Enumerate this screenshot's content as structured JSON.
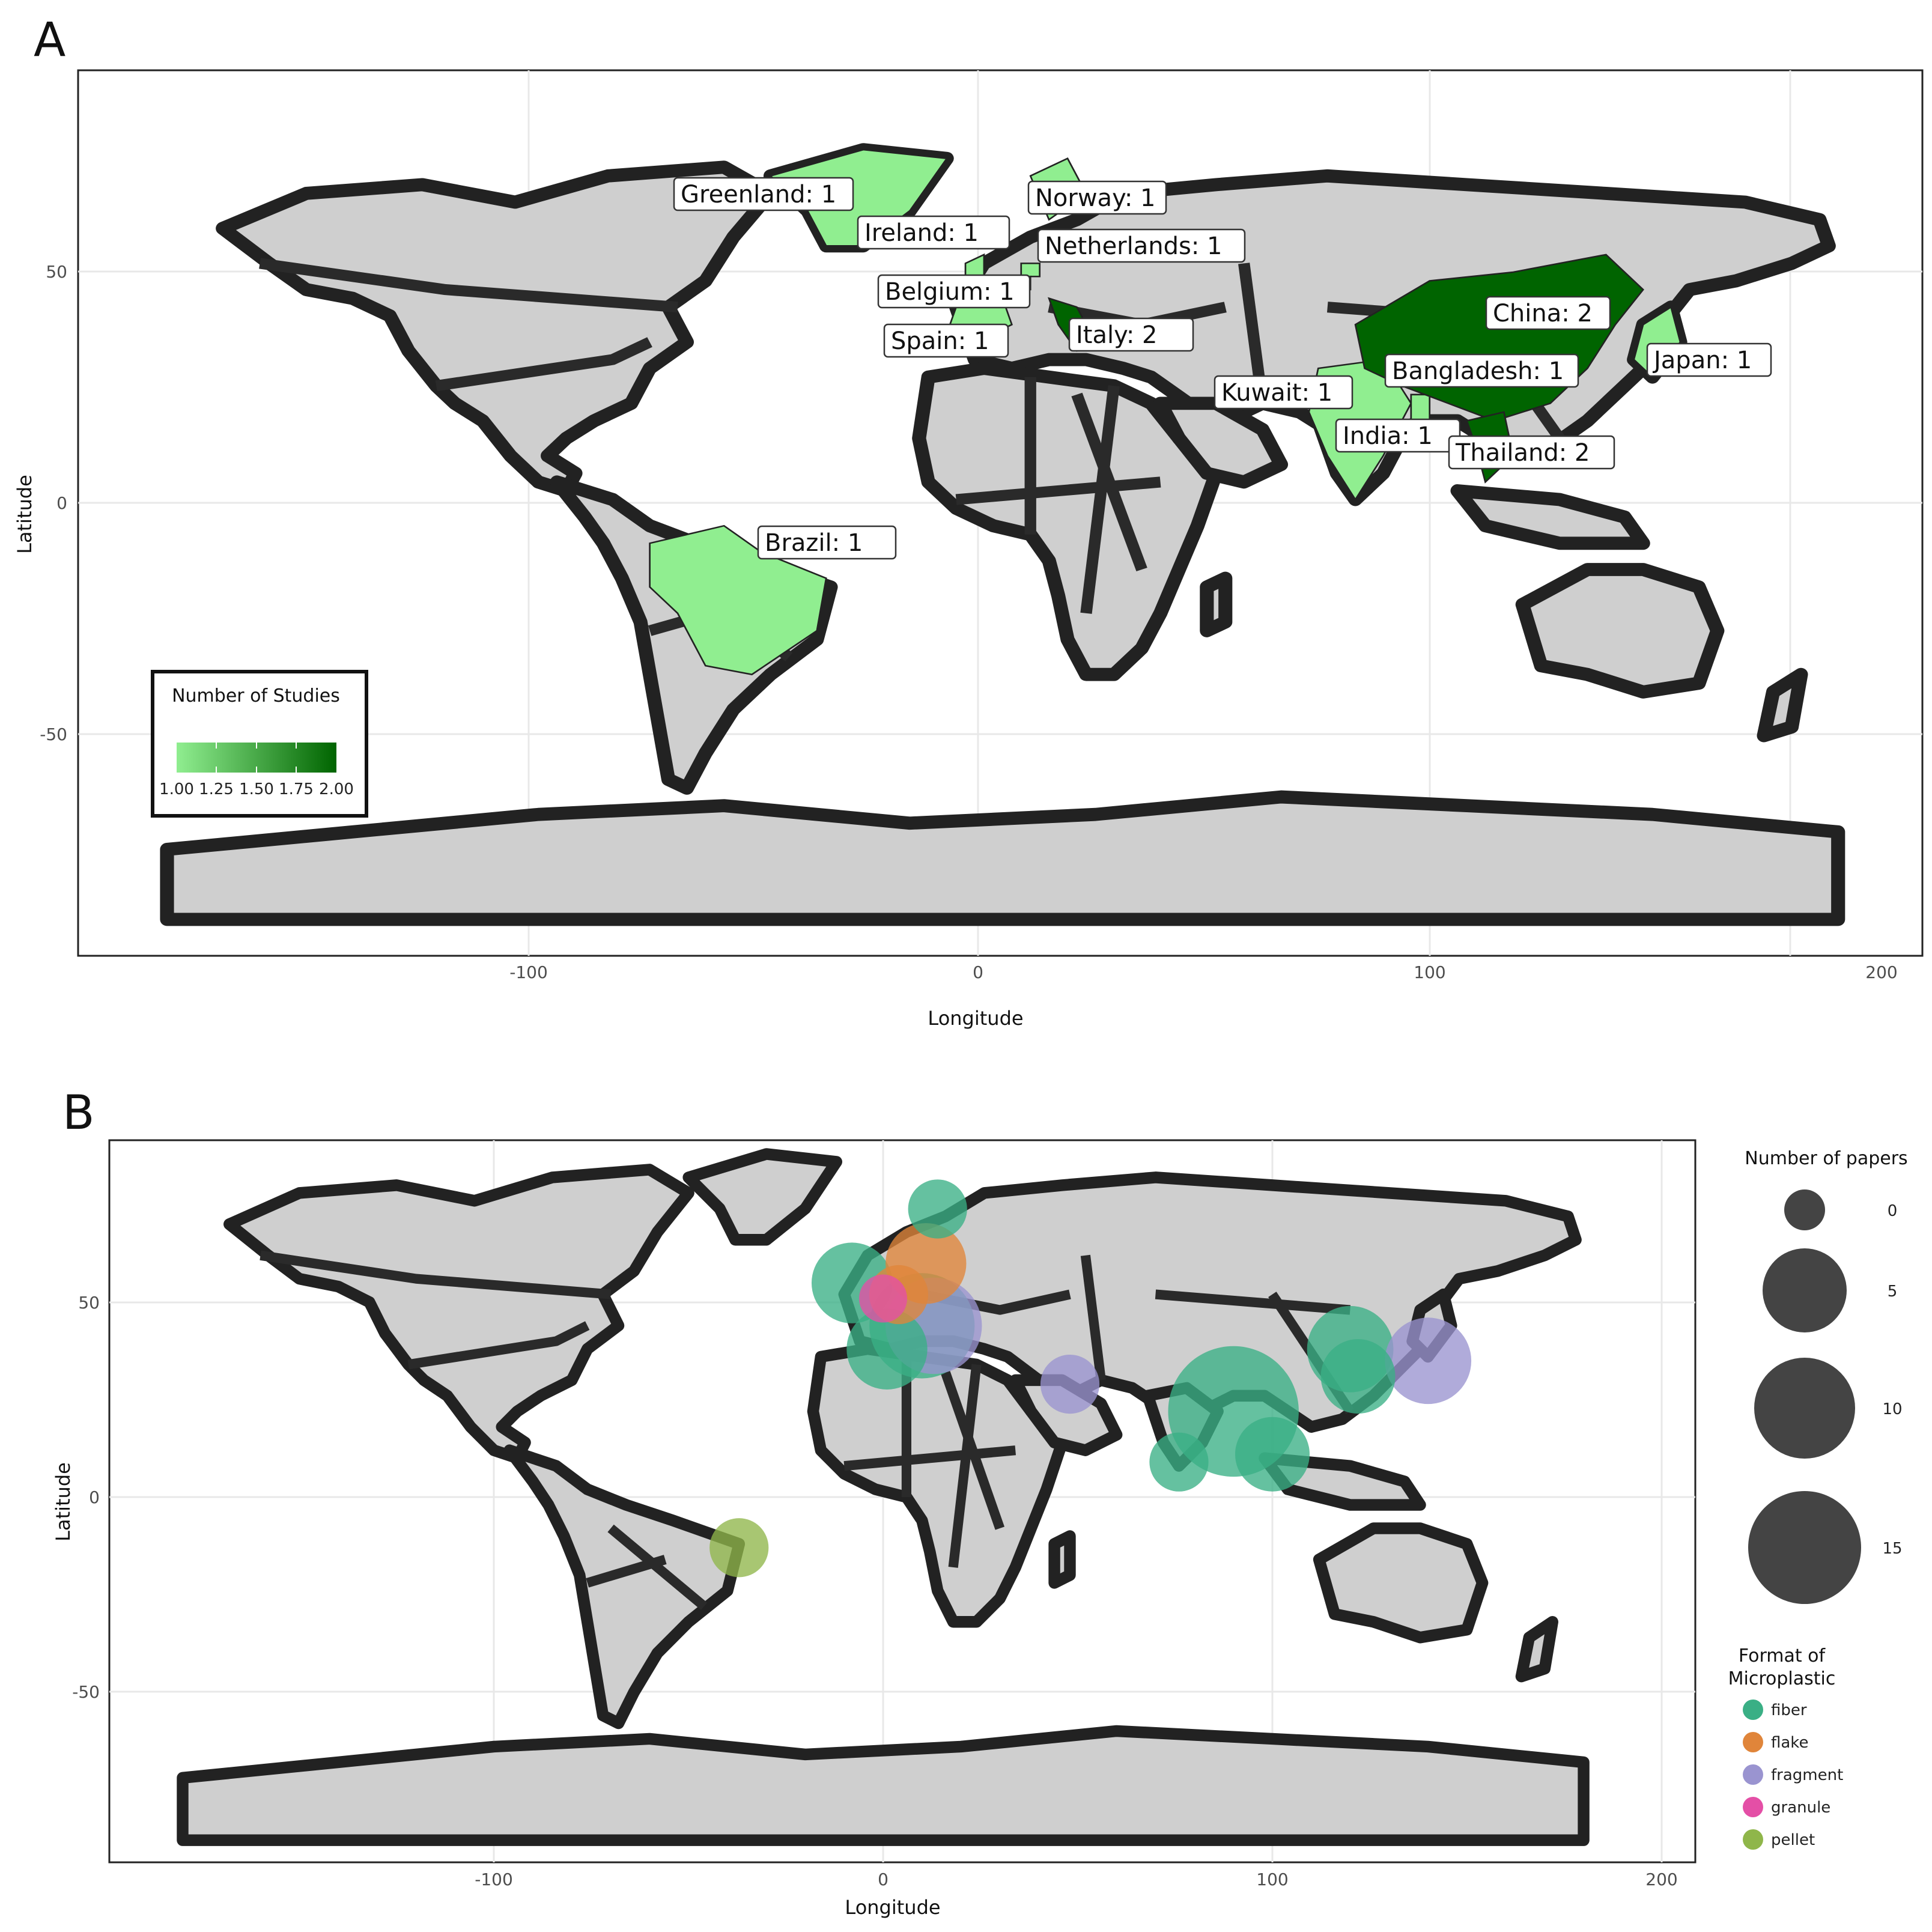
{
  "panels": {
    "a": {
      "letter": "A"
    },
    "b": {
      "letter": "B"
    }
  },
  "axes": {
    "xlabel": "Longitude",
    "ylabel": "Latitude",
    "x_ticks": [
      "-100",
      "0",
      "100",
      "200"
    ],
    "y_ticks_a": [
      "50",
      "0",
      "-50"
    ],
    "y_ticks_b": [
      "50",
      "0",
      "-50"
    ]
  },
  "map_a": {
    "legend_title": "Number of Studies",
    "legend_ticks": [
      "1.00",
      "1.25",
      "1.50",
      "1.75",
      "2.00"
    ],
    "color_low": "#90ee90",
    "color_high": "#006400",
    "land_color": "#cfcfcf",
    "labels": [
      {
        "text": "Greenland: 1",
        "value": 1
      },
      {
        "text": "Norway: 1",
        "value": 1
      },
      {
        "text": "Ireland: 1",
        "value": 1
      },
      {
        "text": "Netherlands: 1",
        "value": 1
      },
      {
        "text": "Belgium: 1",
        "value": 1
      },
      {
        "text": "China: 2",
        "value": 2
      },
      {
        "text": "Spain: 1",
        "value": 1
      },
      {
        "text": "Italy: 2",
        "value": 2
      },
      {
        "text": "Japan: 1",
        "value": 1
      },
      {
        "text": "Bangladesh: 1",
        "value": 1
      },
      {
        "text": "Kuwait: 1",
        "value": 1
      },
      {
        "text": "India: 1",
        "value": 1
      },
      {
        "text": "Thailand: 2",
        "value": 2
      },
      {
        "text": "Brazil: 1",
        "value": 1
      }
    ]
  },
  "map_b": {
    "size_legend_title": "Number of papers",
    "size_legend_values": [
      "0",
      "5",
      "10",
      "15"
    ],
    "color_legend_title_line1": "Format of",
    "color_legend_title_line2": "Microplastic",
    "formats": [
      {
        "name": "fiber",
        "color": "#3aaf85"
      },
      {
        "name": "flake",
        "color": "#e0853a"
      },
      {
        "name": "fragment",
        "color": "#9a94d0"
      },
      {
        "name": "granule",
        "color": "#e44fa6"
      },
      {
        "name": "pellet",
        "color": "#8fb64a"
      }
    ],
    "points": [
      {
        "lon": 14,
        "lat": 74,
        "papers": 2,
        "format": "fiber"
      },
      {
        "lon": -8,
        "lat": 55,
        "papers": 5,
        "format": "fiber"
      },
      {
        "lon": 11,
        "lat": 60,
        "papers": 5,
        "format": "flake"
      },
      {
        "lon": 4,
        "lat": 52,
        "papers": 2,
        "format": "flake"
      },
      {
        "lon": 0,
        "lat": 51,
        "papers": 1,
        "format": "granule"
      },
      {
        "lon": 13,
        "lat": 44,
        "papers": 8,
        "format": "fragment"
      },
      {
        "lon": 10,
        "lat": 44,
        "papers": 10,
        "format": "fiber"
      },
      {
        "lon": 1,
        "lat": 38,
        "papers": 5,
        "format": "fiber"
      },
      {
        "lon": 48,
        "lat": 29,
        "papers": 2,
        "format": "fragment"
      },
      {
        "lon": 120,
        "lat": 38,
        "papers": 6,
        "format": "fiber"
      },
      {
        "lon": 122,
        "lat": 31,
        "papers": 4,
        "format": "fiber"
      },
      {
        "lon": 140,
        "lat": 35,
        "papers": 6,
        "format": "fragment"
      },
      {
        "lon": 90,
        "lat": 22,
        "papers": 17,
        "format": "fiber"
      },
      {
        "lon": 76,
        "lat": 9,
        "papers": 2,
        "format": "fiber"
      },
      {
        "lon": 100,
        "lat": 11,
        "papers": 4,
        "format": "fiber"
      },
      {
        "lon": -37,
        "lat": -13,
        "papers": 2,
        "format": "pellet"
      }
    ]
  }
}
